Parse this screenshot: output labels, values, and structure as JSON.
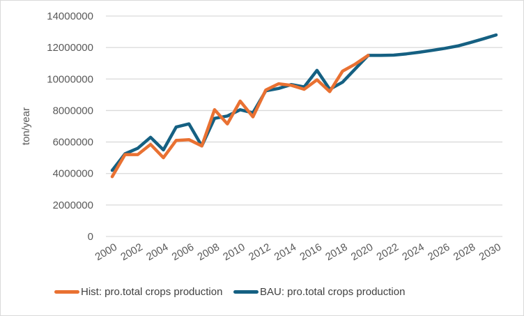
{
  "chart_data": {
    "type": "line",
    "title": "",
    "xlabel": "",
    "ylabel": "ton/year",
    "ylim": [
      0,
      14000000
    ],
    "yticks": [
      "0",
      "2000000",
      "4000000",
      "6000000",
      "8000000",
      "10000000",
      "12000000",
      "14000000"
    ],
    "ytick_values": [
      0,
      2000000,
      4000000,
      6000000,
      8000000,
      10000000,
      12000000,
      14000000
    ],
    "xlim": [
      2000,
      2030
    ],
    "xticks": [
      "2000",
      "2002",
      "2004",
      "2006",
      "2008",
      "2010",
      "2012",
      "2014",
      "2016",
      "2018",
      "2020",
      "2022",
      "2024",
      "2026",
      "2028",
      "2030"
    ],
    "grid": "horizontal",
    "legend_position": "bottom",
    "series": [
      {
        "name": "Hist: pro.total crops production",
        "color": "#E97132",
        "x": [
          2000,
          2001,
          2002,
          2003,
          2004,
          2005,
          2006,
          2007,
          2008,
          2009,
          2010,
          2011,
          2012,
          2013,
          2014,
          2015,
          2016,
          2017,
          2018,
          2019,
          2020
        ],
        "values": [
          3800000,
          5200000,
          5200000,
          5850000,
          5000000,
          6100000,
          6150000,
          5750000,
          8050000,
          7150000,
          8600000,
          7600000,
          9300000,
          9700000,
          9600000,
          9350000,
          9950000,
          9200000,
          10500000,
          10950000,
          11500000
        ]
      },
      {
        "name": "BAU: pro.total crops production",
        "color": "#156082",
        "x": [
          2000,
          2001,
          2002,
          2003,
          2004,
          2005,
          2006,
          2007,
          2008,
          2009,
          2010,
          2011,
          2012,
          2013,
          2014,
          2015,
          2016,
          2017,
          2018,
          2019,
          2020,
          2021,
          2022,
          2023,
          2024,
          2025,
          2026,
          2027,
          2028,
          2029,
          2030
        ],
        "values": [
          4200000,
          5250000,
          5600000,
          6300000,
          5500000,
          6950000,
          7150000,
          5750000,
          7500000,
          7650000,
          8050000,
          7850000,
          9250000,
          9400000,
          9650000,
          9500000,
          10550000,
          9350000,
          9800000,
          10650000,
          11500000,
          11500000,
          11520000,
          11600000,
          11700000,
          11820000,
          11950000,
          12100000,
          12320000,
          12550000,
          12800000
        ]
      }
    ]
  }
}
